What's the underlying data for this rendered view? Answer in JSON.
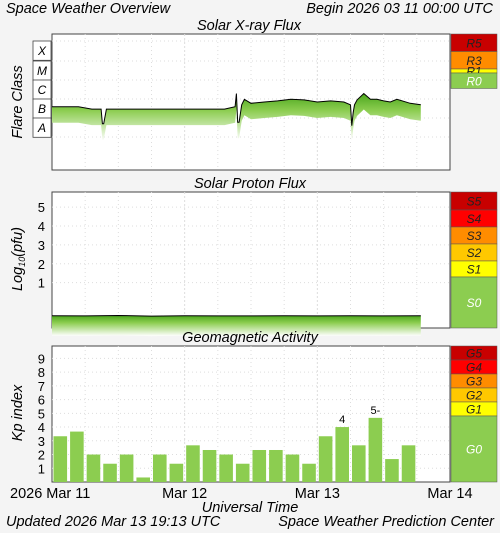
{
  "header": {
    "left": "Space Weather Overview",
    "right": "Begin 2026 03 11 00:00 UTC"
  },
  "footer": {
    "left": "Updated 2026 Mar 13 19:13 UTC",
    "right": "Space Weather Prediction Center"
  },
  "colors": {
    "panel_bg": "#ffffff",
    "page_bg": "#f4f4f4",
    "green": "#8ccd50",
    "bar_green": "#8ccd50",
    "scale_r5": "#c80000",
    "scale_r4": "#ff0000",
    "scale_r3": "#ff8c00",
    "scale_r2": "#ffc800",
    "scale_r1": "#ffff00",
    "scale_r0": "#8ccd50"
  },
  "chart_data": [
    {
      "type": "line",
      "title": "Solar X-ray Flux",
      "ylabel": "Flare Class",
      "y_classes": [
        "X",
        "M",
        "C",
        "B",
        "A"
      ],
      "x_range_days": [
        0,
        3
      ],
      "series": [
        {
          "x": [
            0.0,
            0.1,
            0.2,
            0.3,
            0.37,
            0.38,
            0.39,
            0.41,
            0.5,
            0.6,
            0.7,
            0.8,
            0.9,
            1.0,
            1.1,
            1.2,
            1.3,
            1.38,
            1.39,
            1.4,
            1.41,
            1.43,
            1.45,
            1.5,
            1.6,
            1.7,
            1.8,
            1.9,
            2.0,
            2.1,
            2.2,
            2.25,
            2.26,
            2.27,
            2.28,
            2.3,
            2.35,
            2.4,
            2.45,
            2.5,
            2.55,
            2.6,
            2.7,
            2.78
          ],
          "y": [
            "B4",
            "B4",
            "B4",
            "B3",
            "B3",
            "A5",
            "A5",
            "B3",
            "B3",
            "B3",
            "B3",
            "B3",
            "B3",
            "B3",
            "B3",
            "B3",
            "B3",
            "B4",
            "C2",
            "A6",
            "A6",
            "B5",
            "C1",
            "B6",
            "B7",
            "B8",
            "C1",
            "B9",
            "B7",
            "B8",
            "B7",
            "B5",
            "A4",
            "B2",
            "B5",
            "B9",
            "C2",
            "C1",
            "C1",
            "B8",
            "B7",
            "C1",
            "B6",
            "B5"
          ]
        }
      ],
      "scale": [
        {
          "label": "R5",
          "color": "#c80000"
        },
        {
          "label": "R3",
          "color": "#ff8c00"
        },
        {
          "label": "R1",
          "color": "#ffff00"
        },
        {
          "label": "R0",
          "color": "#8ccd50"
        }
      ]
    },
    {
      "type": "line",
      "title": "Solar Proton Flux",
      "ylabel_main": "Log",
      "ylabel_sub": "10",
      "ylabel_tail": "(pfu)",
      "y_ticks": [
        "5",
        "4",
        "3",
        "2",
        "1"
      ],
      "ylim": [
        -1.4,
        5.8
      ],
      "x_range_days": [
        0,
        3
      ],
      "series": [
        {
          "x": [
            0.0,
            0.25,
            0.5,
            0.75,
            1.0,
            1.25,
            1.5,
            1.75,
            2.0,
            2.25,
            2.5,
            2.78
          ],
          "y": [
            -0.75,
            -0.76,
            -0.74,
            -0.77,
            -0.75,
            -0.76,
            -0.76,
            -0.75,
            -0.76,
            -0.75,
            -0.76,
            -0.75
          ]
        }
      ],
      "scale": [
        {
          "label": "S5",
          "color": "#c80000"
        },
        {
          "label": "S4",
          "color": "#ff0000"
        },
        {
          "label": "S3",
          "color": "#ff8c00"
        },
        {
          "label": "S2",
          "color": "#ffc800"
        },
        {
          "label": "S1",
          "color": "#ffff00"
        },
        {
          "label": "S0",
          "color": "#8ccd50"
        }
      ]
    },
    {
      "type": "bar",
      "title": "Geomagnetic Activity",
      "ylabel": "Kp index",
      "y_ticks": [
        "9",
        "8",
        "7",
        "6",
        "5",
        "4",
        "3",
        "2",
        "1"
      ],
      "ylim": [
        0,
        9.9
      ],
      "values": [
        3.33,
        3.67,
        2.0,
        1.33,
        2.0,
        0.33,
        2.0,
        1.33,
        2.67,
        2.33,
        2.0,
        1.33,
        2.33,
        2.33,
        2.0,
        1.33,
        3.33,
        4.0,
        2.67,
        4.67,
        1.67,
        2.67
      ],
      "annotations": [
        {
          "bar_index": 17,
          "text": "4"
        },
        {
          "bar_index": 19,
          "text": "5-"
        }
      ],
      "xlabel": "Universal Time",
      "x_ticks": [
        "2026 Mar 11",
        "Mar 12",
        "Mar 13",
        "Mar 14"
      ],
      "scale": [
        {
          "label": "G5",
          "color": "#c80000"
        },
        {
          "label": "G4",
          "color": "#ff0000"
        },
        {
          "label": "G3",
          "color": "#ff8c00"
        },
        {
          "label": "G2",
          "color": "#ffc800"
        },
        {
          "label": "G1",
          "color": "#ffff00"
        },
        {
          "label": "G0",
          "color": "#8ccd50"
        }
      ]
    }
  ]
}
